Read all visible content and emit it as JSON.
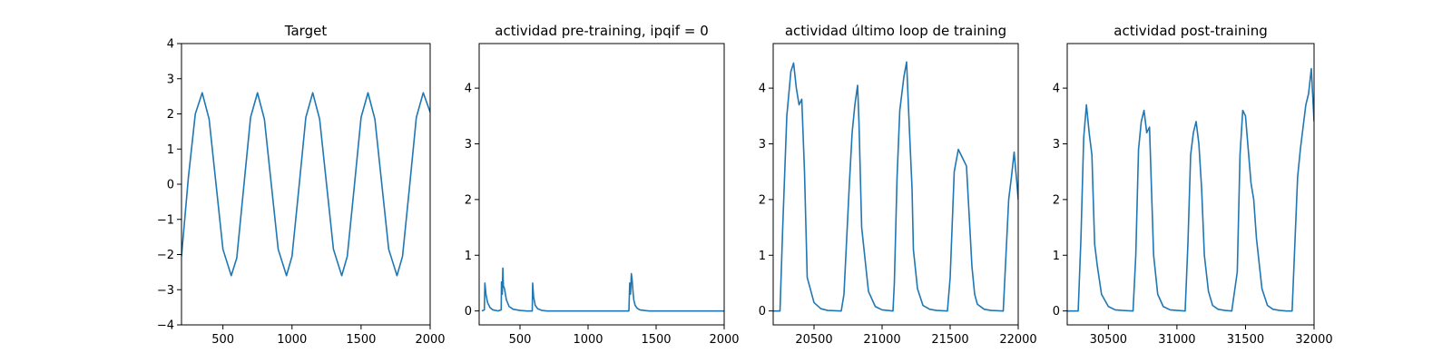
{
  "chart_data": [
    {
      "type": "line",
      "title": "Target",
      "xlim": [
        200,
        2000
      ],
      "ylim": [
        -4,
        4
      ],
      "xticks": [
        500,
        1000,
        1500,
        2000
      ],
      "yticks": [
        -4,
        -3,
        -2,
        -1,
        0,
        1,
        2,
        3,
        4
      ],
      "x": [
        200,
        250,
        300,
        350,
        400,
        450,
        500,
        560,
        600,
        650,
        700,
        750,
        800,
        850,
        900,
        960,
        1000,
        1050,
        1100,
        1150,
        1200,
        1250,
        1300,
        1360,
        1400,
        1450,
        1500,
        1550,
        1600,
        1650,
        1700,
        1760,
        1800,
        1850,
        1900,
        1950,
        2000
      ],
      "series": [
        {
          "color": "#1f77b4",
          "values": [
            -2.05,
            0.2,
            2.0,
            2.6,
            1.85,
            0.0,
            -1.85,
            -2.6,
            -2.1,
            -0.1,
            1.9,
            2.6,
            1.85,
            0.0,
            -1.85,
            -2.6,
            -2.05,
            -0.1,
            1.9,
            2.6,
            1.85,
            0.0,
            -1.85,
            -2.6,
            -2.05,
            -0.1,
            1.9,
            2.6,
            1.85,
            0.0,
            -1.85,
            -2.6,
            -2.05,
            -0.1,
            1.9,
            2.6,
            2.05
          ]
        }
      ]
    },
    {
      "type": "line",
      "title": "actividad pre-training, ipqif = 0",
      "xlim": [
        200,
        2000
      ],
      "ylim": [
        -0.25,
        4.8
      ],
      "xticks": [
        500,
        1000,
        1500,
        2000
      ],
      "yticks": [
        0,
        1,
        2,
        3,
        4
      ],
      "x": [
        220,
        238,
        242,
        250,
        262,
        280,
        300,
        340,
        362,
        364,
        370,
        374,
        378,
        386,
        400,
        420,
        450,
        500,
        550,
        590,
        593,
        600,
        612,
        630,
        660,
        700,
        800,
        1000,
        1200,
        1300,
        1306,
        1312,
        1318,
        1324,
        1330,
        1336,
        1346,
        1360,
        1380,
        1410,
        1450,
        1500,
        1700,
        2000
      ],
      "series": [
        {
          "color": "#1f77b4",
          "values": [
            0,
            0.02,
            0.5,
            0.3,
            0.15,
            0.06,
            0.02,
            0.0,
            0.02,
            0.52,
            0.3,
            0.77,
            0.45,
            0.4,
            0.2,
            0.08,
            0.03,
            0.01,
            0.0,
            0.0,
            0.5,
            0.25,
            0.1,
            0.04,
            0.01,
            0.0,
            0.0,
            0.0,
            0.0,
            0.0,
            0.5,
            0.3,
            0.67,
            0.55,
            0.35,
            0.2,
            0.1,
            0.05,
            0.02,
            0.01,
            0.0,
            0.0,
            0.0,
            0.0
          ]
        }
      ]
    },
    {
      "type": "line",
      "title": "actividad último loop de training",
      "xlim": [
        20200,
        22000
      ],
      "ylim": [
        -0.25,
        4.8
      ],
      "xticks": [
        20500,
        21000,
        21500,
        22000
      ],
      "yticks": [
        0,
        1,
        2,
        3,
        4
      ],
      "x": [
        20200,
        20250,
        20270,
        20300,
        20330,
        20350,
        20370,
        20390,
        20410,
        20430,
        20450,
        20500,
        20550,
        20600,
        20700,
        20720,
        20760,
        20780,
        20800,
        20820,
        20830,
        20850,
        20900,
        20950,
        21000,
        21080,
        21090,
        21110,
        21130,
        21160,
        21180,
        21200,
        21220,
        21230,
        21260,
        21300,
        21350,
        21400,
        21480,
        21500,
        21530,
        21560,
        21600,
        21620,
        21640,
        21660,
        21680,
        21700,
        21750,
        21800,
        21890,
        21910,
        21930,
        21950,
        21970,
        21990,
        22000
      ],
      "series": [
        {
          "color": "#1f77b4",
          "values": [
            0,
            0,
            1.5,
            3.5,
            4.3,
            4.45,
            4.0,
            3.7,
            3.8,
            2.5,
            0.6,
            0.15,
            0.04,
            0.01,
            0.0,
            0.3,
            2.3,
            3.2,
            3.7,
            4.05,
            3.4,
            1.5,
            0.35,
            0.08,
            0.02,
            0.0,
            0.5,
            2.4,
            3.6,
            4.2,
            4.47,
            3.3,
            2.2,
            1.1,
            0.4,
            0.1,
            0.03,
            0.01,
            0.0,
            0.6,
            2.5,
            2.9,
            2.7,
            2.6,
            1.7,
            0.8,
            0.3,
            0.12,
            0.03,
            0.01,
            0.0,
            1.0,
            2.0,
            2.4,
            2.85,
            2.3,
            2.0
          ]
        }
      ]
    },
    {
      "type": "line",
      "title": "actividad post-training",
      "xlim": [
        30200,
        32000
      ],
      "ylim": [
        -0.25,
        4.8
      ],
      "xticks": [
        30500,
        31000,
        31500,
        32000
      ],
      "yticks": [
        0,
        1,
        2,
        3,
        4
      ],
      "x": [
        30200,
        30280,
        30300,
        30320,
        30340,
        30360,
        30380,
        30400,
        30420,
        30450,
        30500,
        30550,
        30600,
        30680,
        30700,
        30720,
        30740,
        30760,
        30780,
        30800,
        30830,
        30860,
        30900,
        30950,
        31000,
        31060,
        31080,
        31100,
        31120,
        31140,
        31160,
        31180,
        31200,
        31230,
        31260,
        31300,
        31350,
        31400,
        31440,
        31460,
        31480,
        31500,
        31520,
        31540,
        31560,
        31580,
        31620,
        31660,
        31700,
        31750,
        31800,
        31840,
        31860,
        31880,
        31900,
        31920,
        31940,
        31960,
        31980,
        32000
      ],
      "series": [
        {
          "color": "#1f77b4",
          "values": [
            0,
            0,
            1.3,
            3.1,
            3.7,
            3.2,
            2.8,
            1.2,
            0.8,
            0.3,
            0.08,
            0.02,
            0.01,
            0.0,
            1.0,
            2.9,
            3.4,
            3.6,
            3.2,
            3.3,
            1.0,
            0.3,
            0.08,
            0.02,
            0.01,
            0.0,
            1.2,
            2.8,
            3.2,
            3.4,
            3.0,
            2.2,
            1.0,
            0.35,
            0.1,
            0.03,
            0.01,
            0.0,
            0.7,
            2.8,
            3.6,
            3.5,
            2.9,
            2.3,
            2.0,
            1.3,
            0.4,
            0.1,
            0.03,
            0.01,
            0.0,
            0.0,
            1.2,
            2.4,
            2.9,
            3.3,
            3.7,
            3.9,
            4.35,
            3.4
          ]
        }
      ]
    }
  ]
}
